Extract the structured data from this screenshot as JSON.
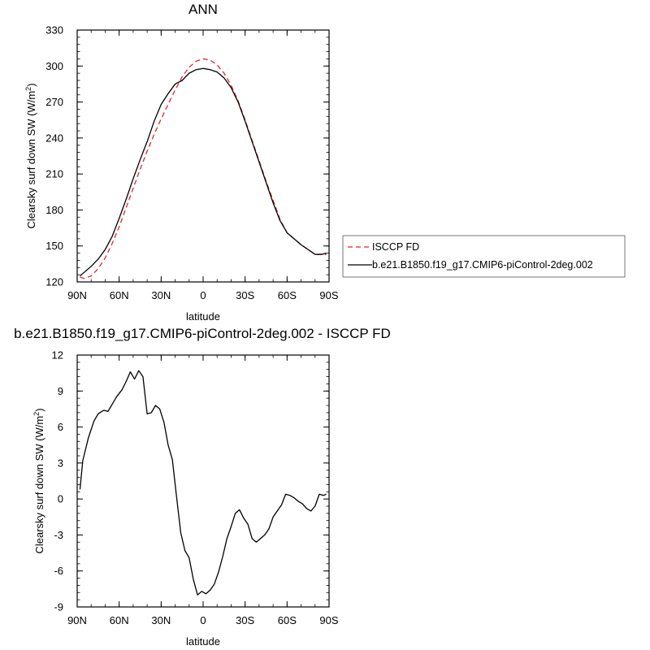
{
  "chart_data": [
    {
      "type": "line",
      "title": "ANN",
      "xlabel": "latitude",
      "ylabel": "Clearsky surf down SW (W/m",
      "ylabel_sup": "2",
      "ylabel_end": ")",
      "xlim": [
        90,
        -90
      ],
      "ylim": [
        120,
        330
      ],
      "x_ticks": [
        90,
        60,
        30,
        0,
        -30,
        -60,
        -90
      ],
      "x_tick_labels": [
        "90N",
        "60N",
        "30N",
        "0",
        "30S",
        "60S",
        "90S"
      ],
      "y_ticks": [
        120,
        150,
        180,
        210,
        240,
        270,
        300,
        330
      ],
      "y_tick_labels": [
        "120",
        "150",
        "180",
        "210",
        "240",
        "270",
        "300",
        "330"
      ],
      "x": [
        88,
        85,
        80,
        75,
        70,
        65,
        60,
        55,
        50,
        45,
        40,
        35,
        30,
        25,
        20,
        15,
        10,
        5,
        0,
        -5,
        -10,
        -15,
        -20,
        -25,
        -30,
        -35,
        -40,
        -45,
        -50,
        -55,
        -60,
        -65,
        -70,
        -75,
        -80,
        -85,
        -88
      ],
      "series": [
        {
          "name": "ISCCP FD",
          "color": "#e8232a",
          "dash": "dashed",
          "values": [
            124,
            123,
            125,
            131,
            140,
            152,
            166,
            182,
            198,
            214,
            229,
            243,
            256,
            268,
            280,
            291,
            299,
            304,
            306,
            305,
            301,
            294,
            284,
            271,
            255,
            238,
            221,
            204,
            188,
            172,
            161,
            156,
            151,
            147,
            143,
            143,
            143
          ]
        },
        {
          "name": "b.e21.B1850.f19_g17.CMIP6-piControl-2deg.002",
          "color": "#000000",
          "dash": "solid",
          "values": [
            125,
            128,
            133,
            139,
            147,
            158,
            173,
            189,
            206,
            222,
            237,
            254,
            268,
            277,
            285,
            288,
            294,
            297,
            298,
            297,
            295,
            290,
            282,
            270,
            254,
            237,
            220,
            203,
            186,
            171,
            161,
            156,
            151,
            147,
            143,
            143,
            144
          ]
        }
      ]
    },
    {
      "type": "line",
      "title": "b.e21.B1850.f19_g17.CMIP6-piControl-2deg.002 - ISCCP FD",
      "xlabel": "latitude",
      "ylabel": "Clearsky surf down SW (W/m",
      "ylabel_sup": "2",
      "ylabel_end": ")",
      "xlim": [
        90,
        -90
      ],
      "ylim": [
        -9,
        12
      ],
      "x_ticks": [
        90,
        60,
        30,
        0,
        -30,
        -60,
        -90
      ],
      "x_tick_labels": [
        "90N",
        "60N",
        "30N",
        "0",
        "30S",
        "60S",
        "90S"
      ],
      "y_ticks": [
        -9,
        -6,
        -3,
        0,
        3,
        6,
        9,
        12
      ],
      "y_tick_labels": [
        "-9",
        "-6",
        "-3",
        "0",
        "3",
        "6",
        "9",
        "12"
      ],
      "x": [
        88,
        86,
        82,
        78,
        75,
        71,
        68,
        65,
        62,
        58,
        55,
        52,
        49,
        46,
        43,
        40,
        37,
        34,
        31,
        28,
        25,
        22,
        19,
        16,
        13,
        10,
        7,
        4,
        1,
        -2,
        -5,
        -8,
        -11,
        -14,
        -17,
        -20,
        -23,
        -26,
        -29,
        -32,
        -35,
        -38,
        -41,
        -44,
        -47,
        -50,
        -53,
        -56,
        -59,
        -62,
        -65,
        -68,
        -71,
        -74,
        -77,
        -80,
        -83,
        -86,
        -88
      ],
      "series": [
        {
          "name": "b.e21.B1850.f19_g17.CMIP6-piControl-2deg.002 - ISCCP FD",
          "color": "#000000",
          "dash": "solid",
          "values": [
            0.8,
            3.2,
            5.1,
            6.5,
            7.1,
            7.4,
            7.3,
            7.9,
            8.5,
            9.1,
            9.8,
            10.6,
            10.0,
            10.7,
            10.2,
            7.1,
            7.2,
            7.8,
            7.5,
            6.4,
            4.5,
            3.3,
            0.2,
            -2.8,
            -4.3,
            -4.9,
            -6.7,
            -8.0,
            -7.7,
            -7.9,
            -7.6,
            -7.1,
            -6.1,
            -4.8,
            -3.3,
            -2.3,
            -1.2,
            -0.9,
            -1.6,
            -2.1,
            -3.3,
            -3.6,
            -3.3,
            -3.0,
            -2.5,
            -1.5,
            -1.0,
            -0.5,
            0.4,
            0.3,
            0.1,
            -0.2,
            -0.4,
            -0.8,
            -1.0,
            -0.6,
            0.4,
            0.3,
            0.4
          ]
        }
      ]
    }
  ]
}
